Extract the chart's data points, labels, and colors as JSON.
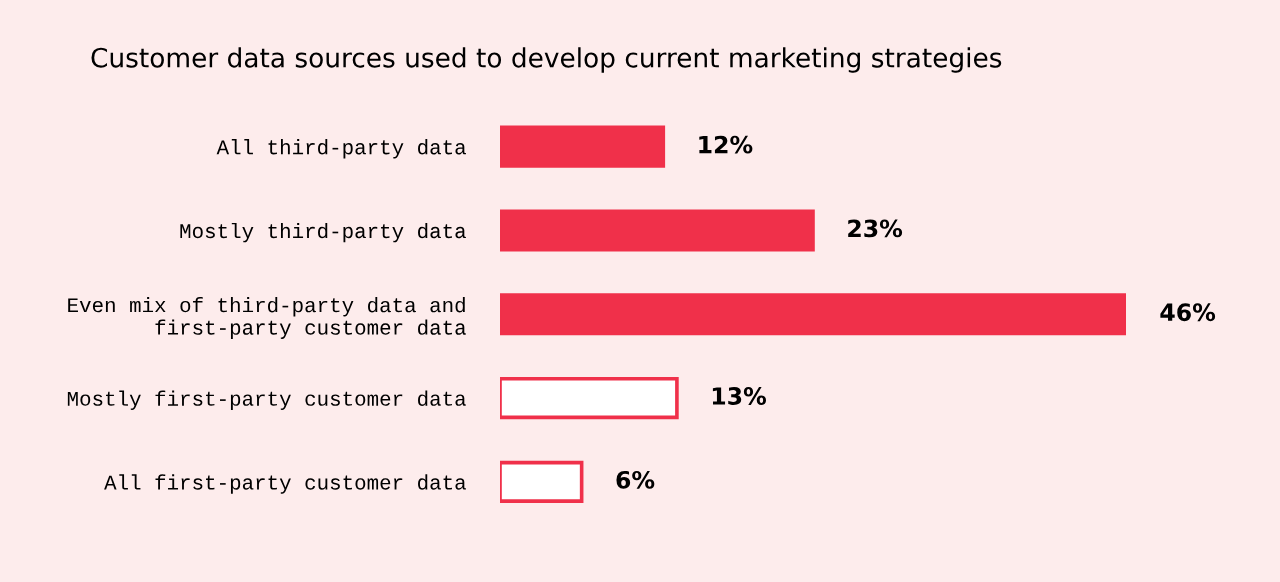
{
  "chart_data": {
    "type": "bar",
    "orientation": "horizontal",
    "title": "Customer data sources used to develop current marketing strategies",
    "categories": [
      "All third-party data",
      "Mostly third-party data",
      "Even mix of third-party data and\nfirst-party customer data",
      "Mostly first-party customer data",
      "All first-party customer data"
    ],
    "values": [
      12,
      23,
      46,
      13,
      6
    ],
    "value_labels": [
      "12%",
      "23%",
      "46%",
      "13%",
      "6%"
    ],
    "color": "#f0304a",
    "colors": [
      "#f0304a",
      "#f0304a",
      "#f0304a",
      "#ffffff",
      "#ffffff"
    ],
    "grid": false,
    "legend": false
  }
}
